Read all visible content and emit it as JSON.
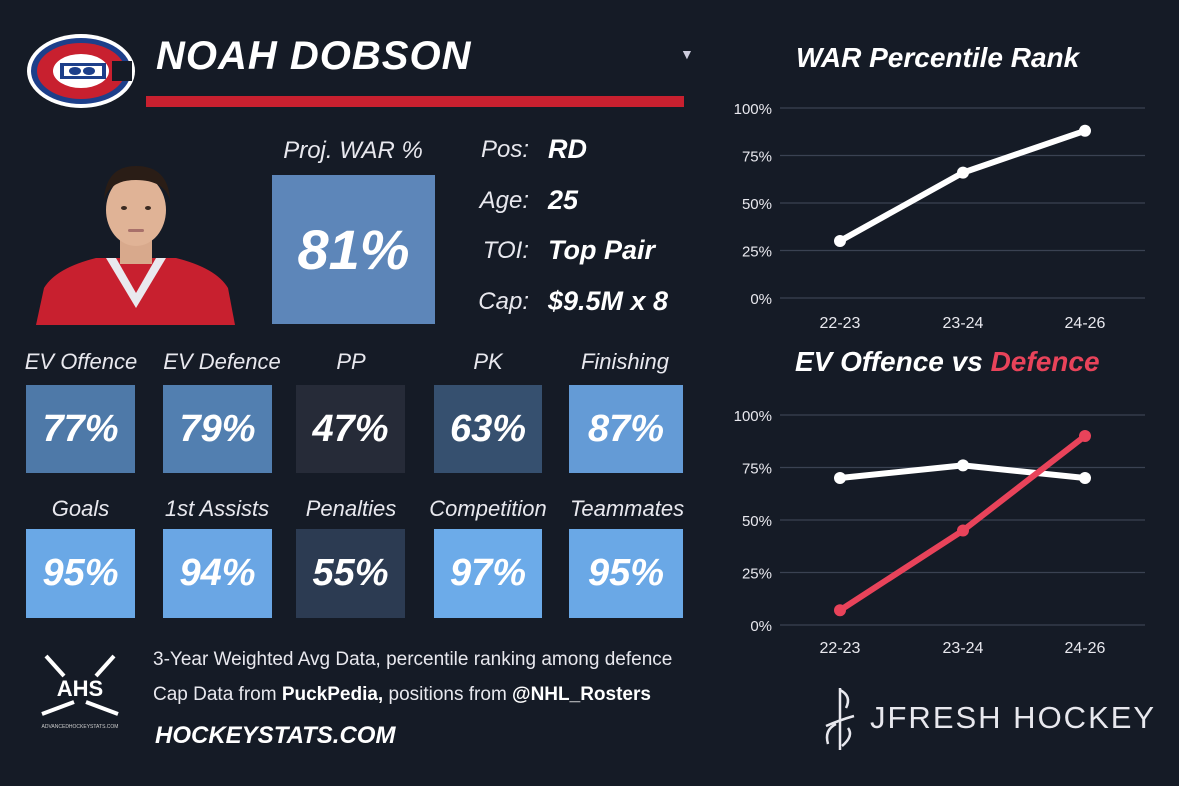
{
  "player": {
    "name": "NOAH DOBSON"
  },
  "proj_war": {
    "label": "Proj. WAR %",
    "value": "81%"
  },
  "info": [
    {
      "key": "Pos:",
      "value": "RD"
    },
    {
      "key": "Age:",
      "value": "25"
    },
    {
      "key": "TOI:",
      "value": "Top Pair"
    },
    {
      "key": "Cap:",
      "value": "$9.5M x 8"
    }
  ],
  "stats_row1": [
    {
      "label": "EV Offence",
      "value": "77%",
      "color": "#4e79a8"
    },
    {
      "label": "EV Defence",
      "value": "79%",
      "color": "#527fb0"
    },
    {
      "label": "PP",
      "value": "47%",
      "color": "#262b38"
    },
    {
      "label": "PK",
      "value": "63%",
      "color": "#36506f"
    },
    {
      "label": "Finishing",
      "value": "87%",
      "color": "#649bd6"
    }
  ],
  "stats_row2": [
    {
      "label": "Goals",
      "value": "95%",
      "color": "#6aa8e6"
    },
    {
      "label": "1st Assists",
      "value": "94%",
      "color": "#6aa6e4"
    },
    {
      "label": "Penalties",
      "value": "55%",
      "color": "#2c3b52"
    },
    {
      "label": "Competition",
      "value": "97%",
      "color": "#6cabe9"
    },
    {
      "label": "Teammates",
      "value": "95%",
      "color": "#6aa8e6"
    }
  ],
  "footer": {
    "line1": "3-Year Weighted Avg Data, percentile ranking among defence",
    "line2_pre": "Cap Data from ",
    "line2_b1": "PuckPedia,",
    "line2_mid": " positions from ",
    "line2_b2": "@NHL_Rosters",
    "site": "HOCKEYSTATS.COM",
    "ahs_logo": "AHS",
    "ahs_sub": "ADVANCEDHOCKEYSTATS.COM"
  },
  "brand": {
    "name": "JFRESH HOCKEY"
  },
  "chart_data": [
    {
      "type": "line",
      "title": "WAR Percentile Rank",
      "categories": [
        "22-23",
        "23-24",
        "24-26"
      ],
      "yticks": [
        "0%",
        "25%",
        "50%",
        "75%",
        "100%"
      ],
      "ylim": [
        0,
        100
      ],
      "series": [
        {
          "values": [
            30,
            66,
            88
          ],
          "color": "#ffffff"
        }
      ]
    },
    {
      "type": "line",
      "title_a": "EV Offence vs ",
      "title_b": "Defence",
      "categories": [
        "22-23",
        "23-24",
        "24-26"
      ],
      "yticks": [
        "0%",
        "25%",
        "50%",
        "75%",
        "100%"
      ],
      "ylim": [
        0,
        100
      ],
      "series": [
        {
          "values": [
            70,
            76,
            70
          ],
          "color": "#ffffff"
        },
        {
          "values": [
            7,
            45,
            90
          ],
          "color": "#e8435a"
        }
      ]
    }
  ]
}
